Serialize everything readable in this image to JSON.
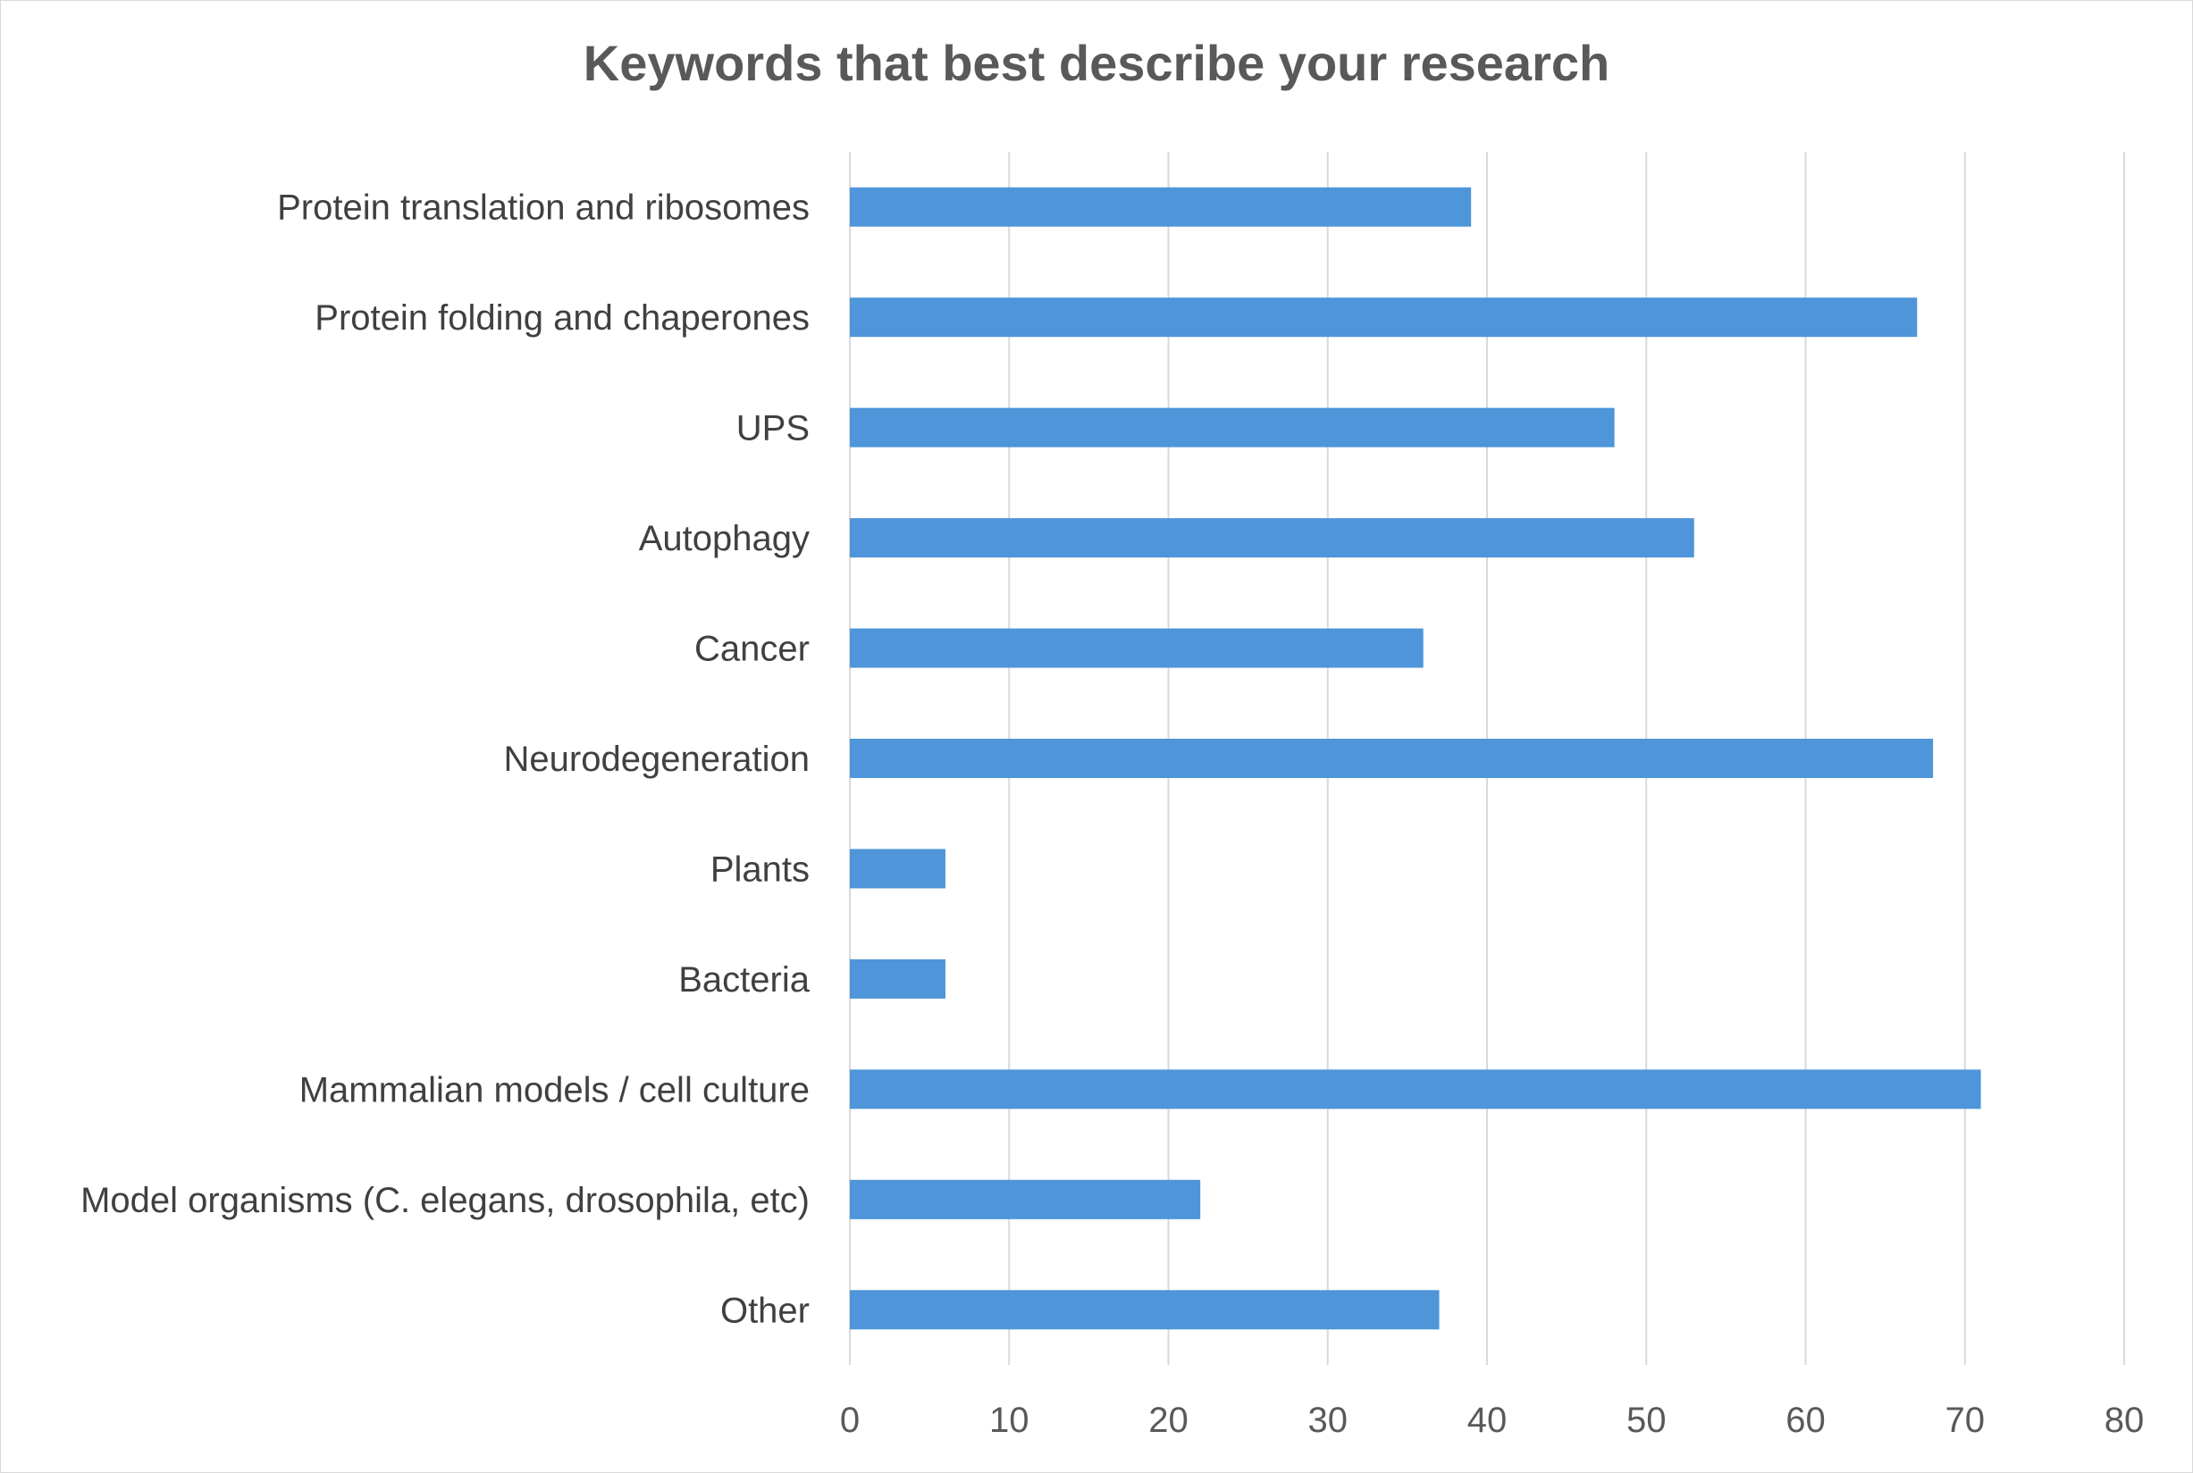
{
  "chart_data": {
    "type": "bar",
    "orientation": "horizontal",
    "title": "Keywords that best describe your research",
    "xlabel": "",
    "ylabel": "",
    "xlim": [
      0,
      80
    ],
    "x_ticks": [
      0,
      10,
      20,
      30,
      40,
      50,
      60,
      70,
      80
    ],
    "grid": "vertical",
    "legend": "none",
    "bar_color": "#4e95d9",
    "categories": [
      "Protein translation and ribosomes",
      "Protein folding and chaperones",
      "UPS",
      "Autophagy",
      "Cancer",
      "Neurodegeneration",
      "Plants",
      "Bacteria",
      "Mammalian models / cell culture",
      "Model organisms (C. elegans, drosophila, etc)",
      "Other"
    ],
    "values": [
      39,
      67,
      48,
      53,
      36,
      68,
      6,
      6,
      71,
      22,
      37
    ]
  }
}
